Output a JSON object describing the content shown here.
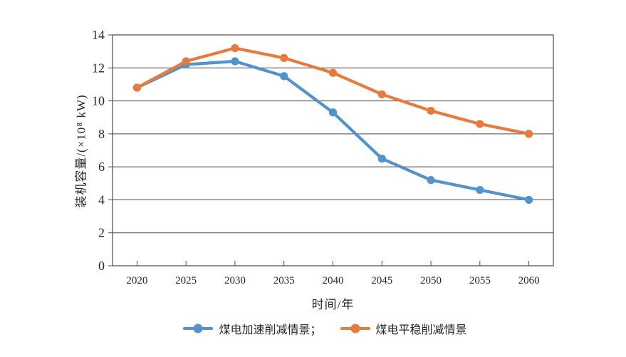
{
  "chart_data": {
    "type": "line",
    "categories": [
      "2020",
      "2025",
      "2030",
      "2035",
      "2040",
      "2045",
      "2050",
      "2055",
      "2060"
    ],
    "series": [
      {
        "name": "煤电加速削减情景",
        "color": "#5293CE",
        "values": [
          10.8,
          12.2,
          12.4,
          11.5,
          9.3,
          6.5,
          5.2,
          4.6,
          4.0
        ]
      },
      {
        "name": "煤电平稳削减情景",
        "color": "#EA7A3C",
        "values": [
          10.8,
          12.4,
          13.2,
          12.6,
          11.7,
          10.4,
          9.4,
          8.6,
          8.0
        ]
      }
    ],
    "legend_labels": [
      "煤电加速削减情景；",
      "煤电平稳削减情景"
    ],
    "xlabel": "时间/年",
    "ylabel": "装机容量/(×10⁸ kW)",
    "ylim": [
      0,
      14
    ],
    "yticks": [
      0,
      2,
      4,
      6,
      8,
      10,
      12,
      14
    ],
    "ytick_step": 2,
    "grid": "horizontal",
    "legend_position": "bottom",
    "marker": "circle",
    "axis_color": "#4a4a4a",
    "text_color": "#262626"
  }
}
